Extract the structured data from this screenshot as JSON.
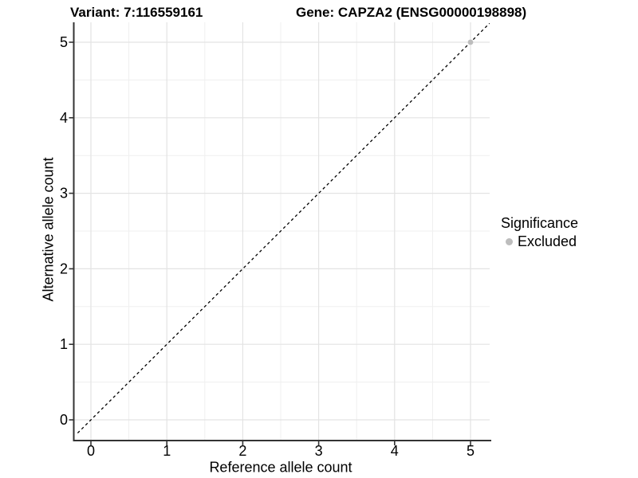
{
  "chart_data": {
    "type": "scatter",
    "title_left": "Variant: 7:116559161",
    "title_right": "Gene: CAPZA2 (ENSG00000198898)",
    "xlabel": "Reference allele count",
    "ylabel": "Alternative allele count",
    "x_ticks": [
      0,
      1,
      2,
      3,
      4,
      5
    ],
    "y_ticks": [
      0,
      1,
      2,
      3,
      4,
      5
    ],
    "xlim": [
      -0.22,
      5.25
    ],
    "ylim": [
      -0.27,
      5.27
    ],
    "grid": "major+minor",
    "legend": {
      "title": "Significance",
      "position": "right"
    },
    "series": [
      {
        "name": "Excluded",
        "color": "#bdbdbd",
        "points": [
          {
            "x": 5,
            "y": 5
          }
        ]
      }
    ],
    "reference_line": {
      "type": "identity",
      "equation": "y = x",
      "style": "dashed",
      "color": "#000000"
    }
  },
  "colors": {
    "background": "#ffffff",
    "axis_line": "#333333",
    "tick_mark": "#333333",
    "grid_major": "#e3e3e3",
    "grid_minor": "#efefef",
    "text": "#000000",
    "excluded_point": "#bdbdbd"
  }
}
